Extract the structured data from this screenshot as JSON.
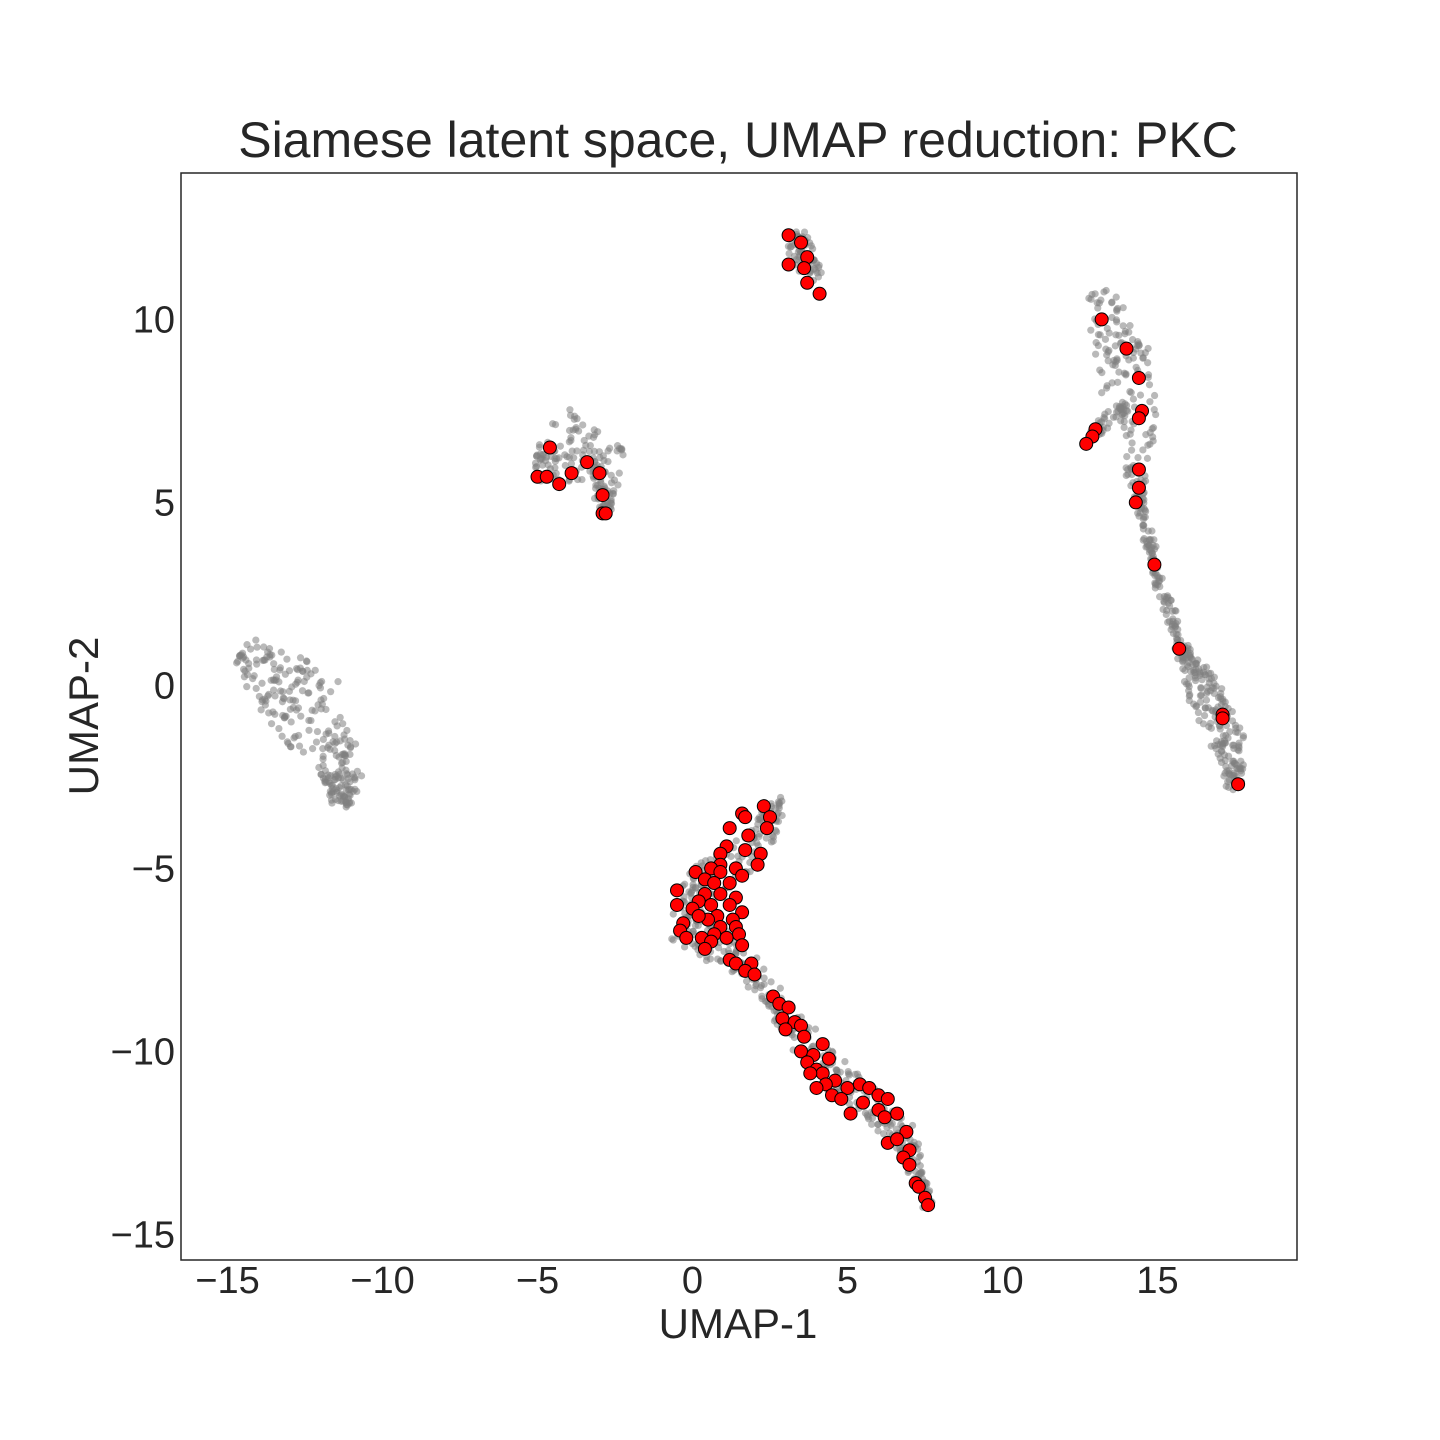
{
  "chart_data": {
    "type": "scatter",
    "title": "Siamese latent space, UMAP reduction: PKC",
    "xlabel": "UMAP-1",
    "ylabel": "UMAP-2",
    "xlim": [
      -16.5,
      19.5
    ],
    "ylim": [
      -15.7,
      14.0
    ],
    "xticks": [
      {
        "value": -15,
        "label": "−15"
      },
      {
        "value": -10,
        "label": "−10"
      },
      {
        "value": -5,
        "label": "−5"
      },
      {
        "value": 0,
        "label": "0"
      },
      {
        "value": 5,
        "label": "5"
      },
      {
        "value": 10,
        "label": "10"
      },
      {
        "value": 15,
        "label": "15"
      }
    ],
    "yticks": [
      {
        "value": -15,
        "label": "−15"
      },
      {
        "value": -10,
        "label": "−10"
      },
      {
        "value": -5,
        "label": "−5"
      },
      {
        "value": 0,
        "label": "0"
      },
      {
        "value": 5,
        "label": "5"
      },
      {
        "value": 10,
        "label": "10"
      }
    ],
    "grid": false,
    "background_cluster_color": "#808080",
    "highlight_color": "#ff0000",
    "highlight_edge_color": "#000000",
    "background_clusters": [
      {
        "shape": "crescent",
        "count": 260,
        "spine": [
          [
            -14.5,
            1.0
          ],
          [
            -13.3,
            0.1
          ],
          [
            -12.2,
            -0.9
          ],
          [
            -11.3,
            -2.3
          ],
          [
            -11.3,
            -3.3
          ]
        ],
        "width": [
          0.4,
          1.0,
          1.2,
          0.7,
          0.3
        ]
      },
      {
        "shape": "blob",
        "count": 160,
        "spine": [
          [
            -5.0,
            6.0
          ],
          [
            -4.0,
            6.5
          ],
          [
            -3.0,
            6.5
          ],
          [
            -2.8,
            5.5
          ],
          [
            -2.8,
            4.7
          ]
        ],
        "width": [
          0.4,
          1.0,
          0.9,
          0.4,
          0.15
        ]
      },
      {
        "shape": "blob",
        "count": 60,
        "spine": [
          [
            3.2,
            12.3
          ],
          [
            3.6,
            11.8
          ],
          [
            4.0,
            11.1
          ]
        ],
        "width": [
          0.35,
          0.35,
          0.25
        ]
      },
      {
        "shape": "curve",
        "count": 480,
        "spine": [
          [
            13.1,
            10.8
          ],
          [
            13.8,
            9.0
          ],
          [
            14.3,
            7.5
          ],
          [
            14.4,
            5.0
          ],
          [
            15.0,
            3.0
          ],
          [
            15.8,
            1.0
          ],
          [
            16.5,
            -0.2
          ],
          [
            17.3,
            -1.5
          ],
          [
            17.5,
            -2.8
          ]
        ],
        "width": [
          0.3,
          0.9,
          0.7,
          0.15,
          0.1,
          0.15,
          0.5,
          0.5,
          0.25
        ]
      },
      {
        "shape": "curve",
        "count": 40,
        "spine": [
          [
            12.7,
            6.6
          ],
          [
            13.3,
            7.2
          ],
          [
            14.2,
            7.8
          ]
        ],
        "width": [
          0.15,
          0.2,
          0.15
        ]
      },
      {
        "shape": "curve",
        "count": 520,
        "spine": [
          [
            2.8,
            -3.1
          ],
          [
            2.2,
            -4.3
          ],
          [
            1.0,
            -5.0
          ],
          [
            0.0,
            -5.6
          ],
          [
            -0.3,
            -6.4
          ],
          [
            0.5,
            -7.0
          ],
          [
            1.7,
            -7.6
          ],
          [
            2.7,
            -8.7
          ],
          [
            3.7,
            -9.8
          ],
          [
            4.8,
            -10.8
          ],
          [
            6.0,
            -11.6
          ],
          [
            6.9,
            -12.4
          ],
          [
            7.3,
            -13.4
          ],
          [
            7.6,
            -14.2
          ]
        ],
        "width": [
          0.25,
          0.45,
          0.6,
          0.55,
          0.6,
          0.6,
          0.35,
          0.3,
          0.4,
          0.45,
          0.45,
          0.35,
          0.2,
          0.1
        ]
      }
    ],
    "highlight_points": [
      [
        3.1,
        12.3
      ],
      [
        3.5,
        12.1
      ],
      [
        3.7,
        11.7
      ],
      [
        3.1,
        11.5
      ],
      [
        3.6,
        11.4
      ],
      [
        3.7,
        11.0
      ],
      [
        4.1,
        10.7
      ],
      [
        -4.6,
        6.5
      ],
      [
        -3.4,
        6.1
      ],
      [
        -5.0,
        5.7
      ],
      [
        -4.7,
        5.7
      ],
      [
        -3.9,
        5.8
      ],
      [
        -3.0,
        5.8
      ],
      [
        -4.3,
        5.5
      ],
      [
        -2.9,
        5.2
      ],
      [
        -2.9,
        4.7
      ],
      [
        -2.8,
        4.7
      ],
      [
        13.2,
        10.0
      ],
      [
        14.0,
        9.2
      ],
      [
        14.4,
        8.4
      ],
      [
        14.5,
        7.5
      ],
      [
        14.4,
        7.3
      ],
      [
        13.0,
        7.0
      ],
      [
        12.9,
        6.8
      ],
      [
        12.7,
        6.6
      ],
      [
        14.4,
        5.9
      ],
      [
        14.4,
        5.4
      ],
      [
        14.3,
        5.0
      ],
      [
        14.9,
        3.3
      ],
      [
        15.7,
        1.0
      ],
      [
        17.1,
        -0.8
      ],
      [
        17.1,
        -0.9
      ],
      [
        17.6,
        -2.7
      ],
      [
        2.3,
        -3.3
      ],
      [
        1.6,
        -3.5
      ],
      [
        1.7,
        -3.6
      ],
      [
        2.5,
        -3.6
      ],
      [
        2.4,
        -3.9
      ],
      [
        1.2,
        -3.9
      ],
      [
        1.8,
        -4.1
      ],
      [
        1.1,
        -4.4
      ],
      [
        2.2,
        -4.6
      ],
      [
        1.7,
        -4.5
      ],
      [
        0.9,
        -4.6
      ],
      [
        2.1,
        -4.9
      ],
      [
        0.9,
        -4.9
      ],
      [
        0.6,
        -5.0
      ],
      [
        0.9,
        -5.1
      ],
      [
        1.4,
        -5.0
      ],
      [
        0.1,
        -5.1
      ],
      [
        0.4,
        -5.3
      ],
      [
        1.6,
        -5.2
      ],
      [
        0.7,
        -5.4
      ],
      [
        1.2,
        -5.4
      ],
      [
        0.4,
        -5.7
      ],
      [
        -0.5,
        -5.6
      ],
      [
        0.9,
        -5.7
      ],
      [
        1.4,
        -5.8
      ],
      [
        0.2,
        -5.9
      ],
      [
        -0.5,
        -6.0
      ],
      [
        0.6,
        -6.0
      ],
      [
        1.2,
        -6.0
      ],
      [
        0.0,
        -6.1
      ],
      [
        0.8,
        -6.3
      ],
      [
        1.6,
        -6.2
      ],
      [
        0.5,
        -6.4
      ],
      [
        1.3,
        -6.4
      ],
      [
        0.2,
        -6.3
      ],
      [
        -0.3,
        -6.5
      ],
      [
        0.9,
        -6.6
      ],
      [
        1.4,
        -6.6
      ],
      [
        -0.4,
        -6.7
      ],
      [
        0.7,
        -6.8
      ],
      [
        1.5,
        -6.8
      ],
      [
        0.3,
        -6.9
      ],
      [
        1.1,
        -6.9
      ],
      [
        -0.2,
        -6.9
      ],
      [
        0.6,
        -7.0
      ],
      [
        1.6,
        -7.1
      ],
      [
        0.4,
        -7.2
      ],
      [
        1.2,
        -7.5
      ],
      [
        1.4,
        -7.6
      ],
      [
        1.9,
        -7.6
      ],
      [
        1.7,
        -7.8
      ],
      [
        2.0,
        -7.9
      ],
      [
        2.6,
        -8.5
      ],
      [
        2.8,
        -8.7
      ],
      [
        3.1,
        -8.8
      ],
      [
        2.9,
        -9.1
      ],
      [
        3.3,
        -9.2
      ],
      [
        3.0,
        -9.4
      ],
      [
        3.5,
        -9.3
      ],
      [
        3.6,
        -9.6
      ],
      [
        4.2,
        -9.8
      ],
      [
        3.5,
        -10.0
      ],
      [
        3.9,
        -10.1
      ],
      [
        4.4,
        -10.2
      ],
      [
        3.7,
        -10.3
      ],
      [
        4.0,
        -10.5
      ],
      [
        4.2,
        -10.6
      ],
      [
        3.8,
        -10.6
      ],
      [
        4.6,
        -10.8
      ],
      [
        4.3,
        -10.9
      ],
      [
        4.0,
        -11.0
      ],
      [
        5.0,
        -11.0
      ],
      [
        5.4,
        -10.9
      ],
      [
        5.7,
        -11.0
      ],
      [
        4.5,
        -11.2
      ],
      [
        6.0,
        -11.2
      ],
      [
        4.8,
        -11.3
      ],
      [
        5.5,
        -11.4
      ],
      [
        6.3,
        -11.3
      ],
      [
        6.0,
        -11.6
      ],
      [
        5.1,
        -11.7
      ],
      [
        6.6,
        -11.7
      ],
      [
        6.2,
        -11.8
      ],
      [
        6.9,
        -12.2
      ],
      [
        6.3,
        -12.5
      ],
      [
        6.6,
        -12.4
      ],
      [
        7.0,
        -12.7
      ],
      [
        6.8,
        -12.9
      ],
      [
        7.0,
        -13.1
      ],
      [
        7.2,
        -13.6
      ],
      [
        7.3,
        -13.7
      ],
      [
        7.5,
        -14.0
      ],
      [
        7.6,
        -14.2
      ]
    ]
  }
}
